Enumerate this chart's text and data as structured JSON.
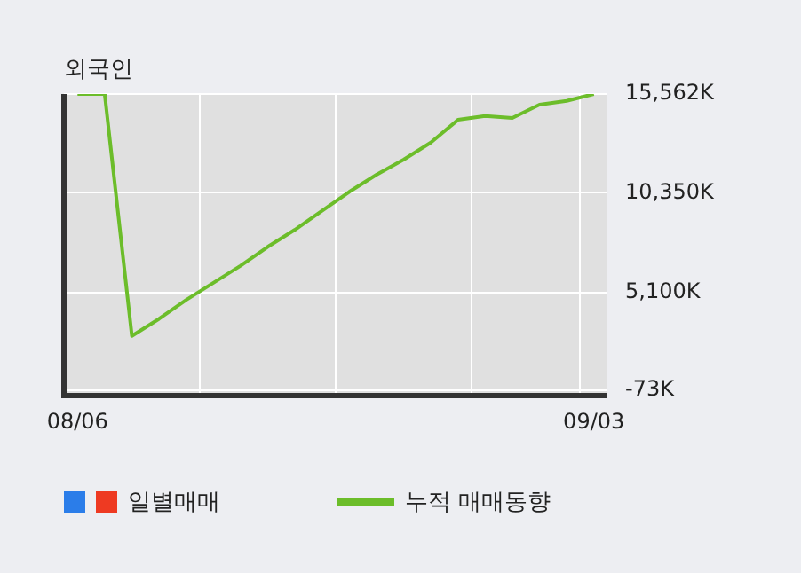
{
  "chart_data": {
    "type": "line",
    "title": "외국인",
    "categories": [
      "08/06",
      null,
      null,
      null,
      null,
      null,
      null,
      null,
      null,
      null,
      null,
      null,
      null,
      null,
      null,
      null,
      null,
      null,
      null,
      "09/03"
    ],
    "series": [
      {
        "name": "일별매매",
        "type": "bar",
        "color": "#ee3a22",
        "values": [
          null,
          null,
          null,
          null,
          null,
          null,
          null,
          null,
          null,
          null,
          null,
          null,
          null,
          null,
          null,
          null,
          null,
          null,
          null,
          null
        ]
      },
      {
        "name": "누적 매매동향",
        "color": "#6cbd2a",
        "values": [
          15562,
          15562,
          2800,
          3700,
          4700,
          5600,
          6500,
          7500,
          8400,
          9400,
          10400,
          11300,
          12100,
          13000,
          14200,
          14400,
          14300,
          15000,
          15200,
          15562
        ]
      }
    ],
    "ylim": [
      -350,
      15562
    ],
    "yticks": [
      {
        "value": -73,
        "label": "-73K"
      },
      {
        "value": 5100,
        "label": "5,100K"
      },
      {
        "value": 10350,
        "label": "10,350K"
      },
      {
        "value": 15562,
        "label": "15,562K"
      }
    ],
    "grid": true,
    "legend": "bottom",
    "marker": "none"
  }
}
